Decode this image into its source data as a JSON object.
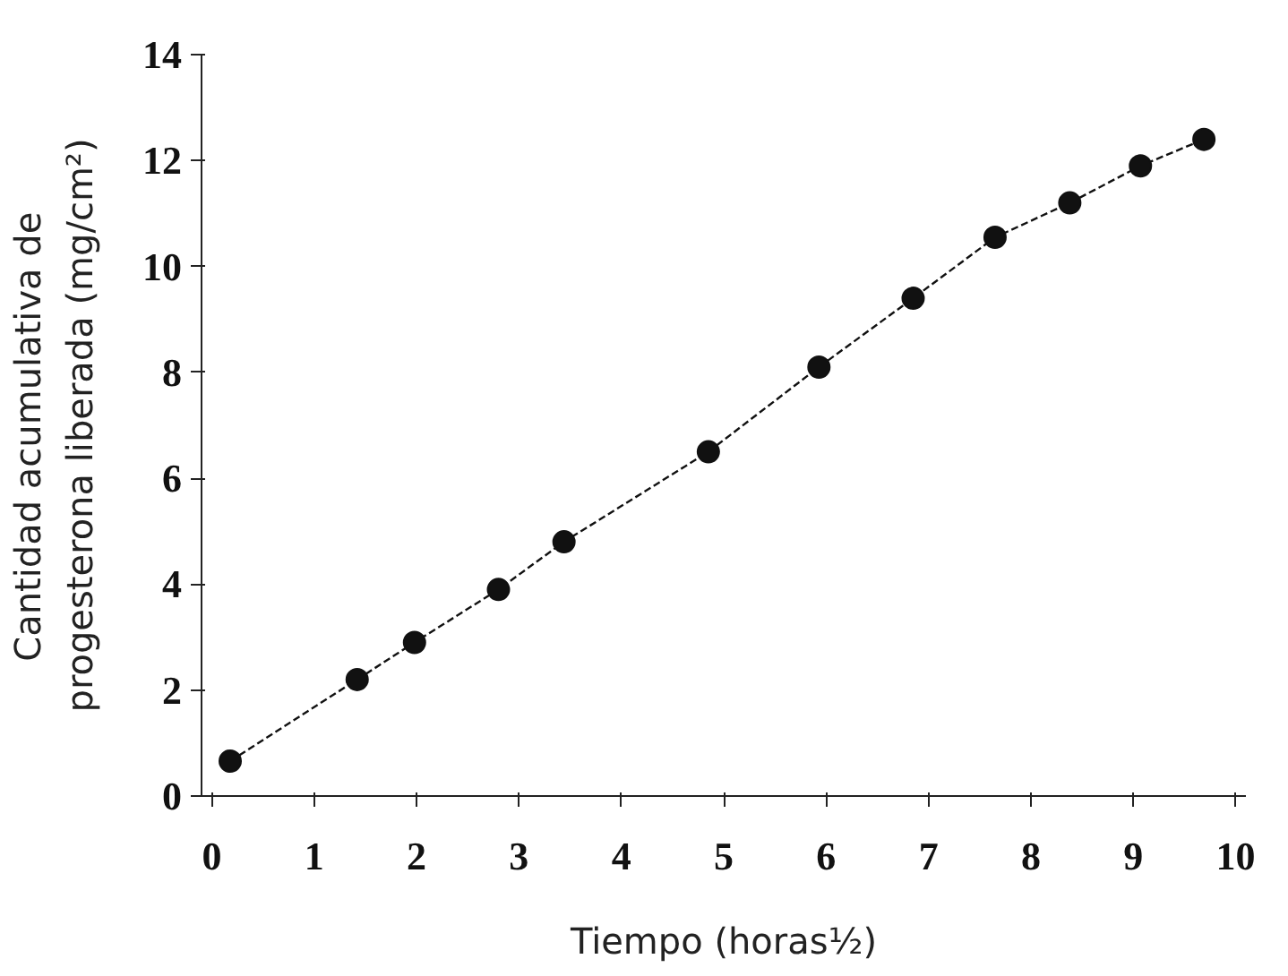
{
  "chart_data": {
    "type": "line",
    "xlabel": "Tiempo (horas½)",
    "ylabel": "Cantidad  acumulativa  de\nprogesterona liberada (mg/cm²)",
    "x": [
      0.18,
      1.42,
      1.98,
      2.8,
      3.44,
      4.85,
      5.93,
      6.85,
      7.65,
      8.38,
      9.07,
      9.69
    ],
    "series": [
      {
        "color": "#111111",
        "values": [
          0.66,
          2.2,
          2.9,
          3.9,
          4.8,
          6.5,
          8.1,
          9.4,
          10.55,
          11.2,
          11.9,
          12.4
        ]
      }
    ],
    "xlim": [
      -0.1,
      10.1
    ],
    "ylim": [
      0,
      14
    ],
    "xticks": [
      0,
      1,
      2,
      3,
      4,
      5,
      6,
      7,
      8,
      9,
      10
    ],
    "yticks": [
      0,
      2,
      4,
      6,
      8,
      10,
      12,
      14
    ],
    "grid": false,
    "marker": "circle",
    "line_style": "dashed"
  }
}
